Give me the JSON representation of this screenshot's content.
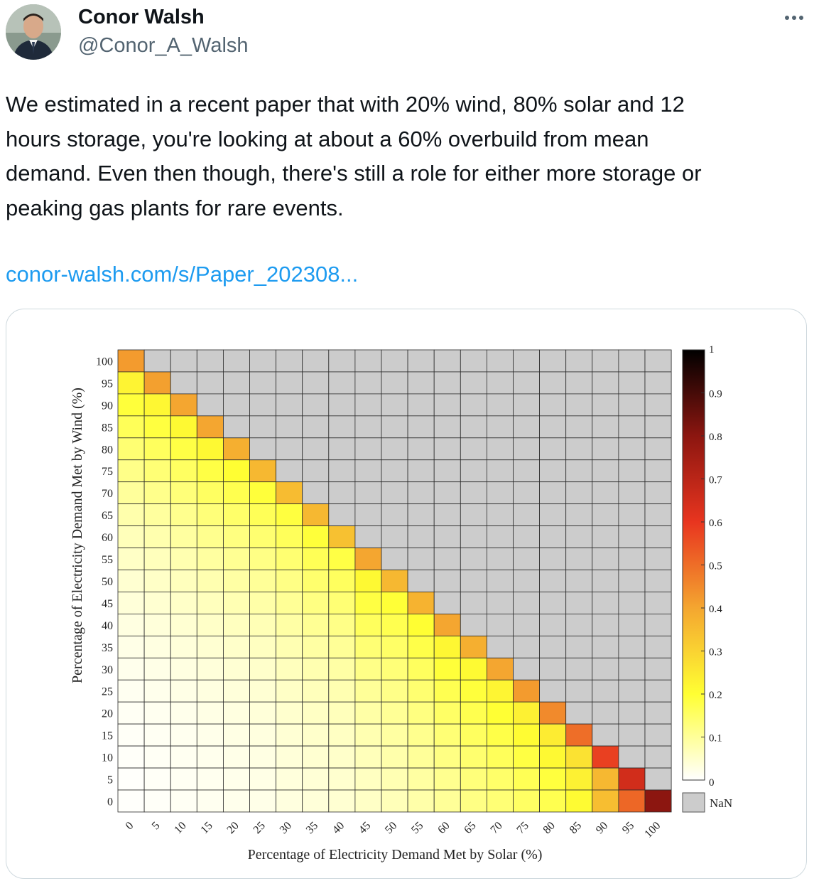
{
  "author": {
    "display_name": "Conor Walsh",
    "handle": "@Conor_A_Walsh"
  },
  "icons": {
    "more": "more-horizontal-icon",
    "avatar": "profile-photo"
  },
  "tweet": {
    "lines": [
      "We estimated in a recent paper that with 20% wind, 80% solar and 12",
      "hours storage, you're looking at about a 60% overbuild from mean",
      "demand.  Even then though, there's still a role for either more storage or",
      "peaking gas plants for rare events."
    ],
    "link_text": "conor-walsh.com/s/Paper_202308..."
  },
  "colors": {
    "link": "#1d9bf0",
    "handle": "#536471",
    "nan": "#cccccc",
    "card_border": "#cfd9de"
  },
  "chart_data": {
    "type": "heatmap",
    "xlabel": "Percentage of Electricity Demand Met by Solar (%)",
    "ylabel": "Percentage of Electricity Demand Met by Wind (%)",
    "x_ticks": [
      "0",
      "5",
      "10",
      "15",
      "20",
      "25",
      "30",
      "35",
      "40",
      "45",
      "50",
      "55",
      "60",
      "65",
      "70",
      "75",
      "80",
      "85",
      "90",
      "95",
      "100"
    ],
    "y_ticks": [
      "100",
      "95",
      "90",
      "85",
      "80",
      "75",
      "70",
      "65",
      "60",
      "55",
      "50",
      "45",
      "40",
      "35",
      "30",
      "25",
      "20",
      "15",
      "10",
      "5",
      "0"
    ],
    "colorbar_ticks": [
      "1",
      "0.9",
      "0.8",
      "0.7",
      "0.6",
      "0.5",
      "0.4",
      "0.3",
      "0.2",
      "0.1",
      "0"
    ],
    "colorbar_range": [
      0,
      1
    ],
    "colormap": "white-yellow-orange-red-black",
    "nan_label": "NaN",
    "nan_rule": "cells with solar + wind > 100 are NaN",
    "diagonal_values": [
      0.42,
      0.41,
      0.4,
      0.4,
      0.38,
      0.36,
      0.35,
      0.36,
      0.34,
      0.4,
      0.36,
      0.37,
      0.4,
      0.38,
      0.4,
      0.42,
      0.45,
      0.5,
      0.58,
      0.65,
      0.8
    ],
    "wind_0_row": [
      0.01,
      0.02,
      0.03,
      0.04,
      0.05,
      0.06,
      0.08,
      0.09,
      0.1,
      0.12,
      0.14,
      0.16,
      0.18,
      0.2,
      0.21,
      0.22,
      0.23,
      0.26,
      0.4,
      0.55,
      0.8
    ]
  }
}
